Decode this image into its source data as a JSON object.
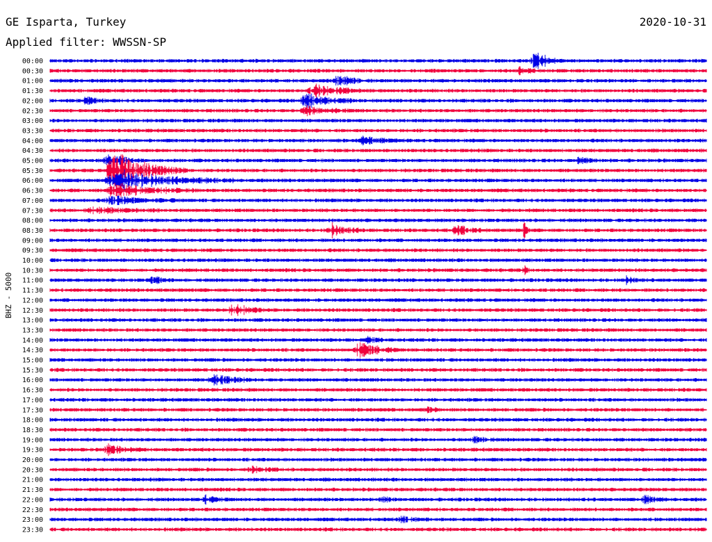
{
  "header": {
    "station": "GE Isparta, Turkey",
    "filter": "Applied filter: WWSSN-SP",
    "date": "2020-10-31"
  },
  "chart_data": {
    "type": "line",
    "title": "GE Isparta, Turkey",
    "subtitle": "Applied filter: WWSSN-SP",
    "date": "2020-10-31",
    "channel_label": "BHZ - 5000",
    "row_labels": [
      "00:00",
      "00:30",
      "01:00",
      "01:30",
      "02:00",
      "02:30",
      "03:00",
      "03:30",
      "04:00",
      "04:30",
      "05:00",
      "05:30",
      "06:00",
      "06:30",
      "07:00",
      "07:30",
      "08:00",
      "08:30",
      "09:00",
      "09:30",
      "10:00",
      "10:30",
      "11:00",
      "11:30",
      "12:00",
      "12:30",
      "13:00",
      "13:30",
      "14:00",
      "14:30",
      "15:00",
      "15:30",
      "16:00",
      "16:30",
      "17:00",
      "17:30",
      "18:00",
      "18:30",
      "19:00",
      "19:30",
      "20:00",
      "20:30",
      "21:00",
      "21:30",
      "22:00",
      "22:30",
      "23:00",
      "23:30"
    ],
    "row_duration_minutes": 30,
    "colors": [
      "#0000e6",
      "#f0003c"
    ],
    "background_amplitude": 0.25,
    "events": [
      {
        "row": 0,
        "start": 0.73,
        "dur": 0.05,
        "amp": 2.4
      },
      {
        "row": 1,
        "start": 0.71,
        "dur": 0.04,
        "amp": 0.8
      },
      {
        "row": 2,
        "start": 0.43,
        "dur": 0.06,
        "amp": 1.3
      },
      {
        "row": 3,
        "start": 0.39,
        "dur": 0.1,
        "amp": 1.4
      },
      {
        "row": 4,
        "start": 0.38,
        "dur": 0.08,
        "amp": 1.8
      },
      {
        "row": 4,
        "start": 0.05,
        "dur": 0.04,
        "amp": 0.8
      },
      {
        "row": 5,
        "start": 0.38,
        "dur": 0.08,
        "amp": 1.0
      },
      {
        "row": 8,
        "start": 0.47,
        "dur": 0.06,
        "amp": 1.2
      },
      {
        "row": 10,
        "start": 0.8,
        "dur": 0.04,
        "amp": 0.8
      },
      {
        "row": 10,
        "start": 0.08,
        "dur": 0.06,
        "amp": 1.6
      },
      {
        "row": 11,
        "start": 0.08,
        "dur": 0.13,
        "amp": 4.5
      },
      {
        "row": 12,
        "start": 0.08,
        "dur": 0.2,
        "amp": 2.2
      },
      {
        "row": 13,
        "start": 0.08,
        "dur": 0.15,
        "amp": 1.6
      },
      {
        "row": 14,
        "start": 0.08,
        "dur": 0.12,
        "amp": 1.0
      },
      {
        "row": 15,
        "start": 0.05,
        "dur": 0.12,
        "amp": 0.8
      },
      {
        "row": 17,
        "start": 0.42,
        "dur": 0.06,
        "amp": 1.6
      },
      {
        "row": 17,
        "start": 0.61,
        "dur": 0.06,
        "amp": 1.2
      },
      {
        "row": 17,
        "start": 0.72,
        "dur": 0.01,
        "amp": 2.5
      },
      {
        "row": 21,
        "start": 0.72,
        "dur": 0.01,
        "amp": 2.0
      },
      {
        "row": 22,
        "start": 0.15,
        "dur": 0.04,
        "amp": 1.0
      },
      {
        "row": 22,
        "start": 0.87,
        "dur": 0.04,
        "amp": 0.9
      },
      {
        "row": 25,
        "start": 0.27,
        "dur": 0.06,
        "amp": 1.5
      },
      {
        "row": 28,
        "start": 0.48,
        "dur": 0.03,
        "amp": 1.0
      },
      {
        "row": 29,
        "start": 0.46,
        "dur": 0.07,
        "amp": 2.0
      },
      {
        "row": 32,
        "start": 0.24,
        "dur": 0.07,
        "amp": 1.3
      },
      {
        "row": 35,
        "start": 0.57,
        "dur": 0.03,
        "amp": 0.6
      },
      {
        "row": 38,
        "start": 0.64,
        "dur": 0.04,
        "amp": 0.7
      },
      {
        "row": 39,
        "start": 0.08,
        "dur": 0.06,
        "amp": 1.3
      },
      {
        "row": 41,
        "start": 0.3,
        "dur": 0.05,
        "amp": 0.8
      },
      {
        "row": 44,
        "start": 0.23,
        "dur": 0.04,
        "amp": 0.8
      },
      {
        "row": 44,
        "start": 0.5,
        "dur": 0.03,
        "amp": 0.8
      },
      {
        "row": 44,
        "start": 0.9,
        "dur": 0.04,
        "amp": 1.0
      },
      {
        "row": 46,
        "start": 0.53,
        "dur": 0.05,
        "amp": 0.9
      }
    ]
  }
}
